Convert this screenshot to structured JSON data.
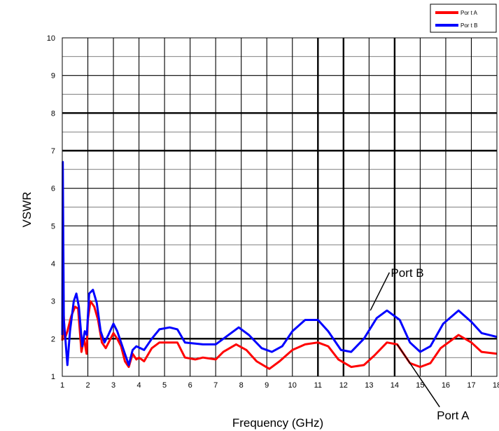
{
  "chart_data": {
    "type": "line",
    "xlabel": "Frequency (GHz)",
    "ylabel": "VSWR",
    "xlim": [
      1,
      18
    ],
    "ylim": [
      1,
      10
    ],
    "x_ticks": [
      "1",
      "2",
      "3",
      "4",
      "5",
      "6",
      "7",
      "8",
      "9",
      "10",
      "11",
      "12",
      "13",
      "14",
      "15",
      "16",
      "17",
      "18"
    ],
    "y_ticks": [
      "1",
      "2",
      "3",
      "4",
      "5",
      "6",
      "7",
      "8",
      "9",
      "10"
    ],
    "grid": true,
    "legend_position": "top-right",
    "legend": [
      "Por t A",
      "Por t B"
    ],
    "series": [
      {
        "name": "Por t A",
        "color": "#ff0000",
        "points": [
          [
            1.0,
            1.95
          ],
          [
            1.05,
            2.7
          ],
          [
            1.1,
            2.0
          ],
          [
            1.2,
            2.2
          ],
          [
            1.35,
            2.6
          ],
          [
            1.5,
            2.85
          ],
          [
            1.62,
            2.8
          ],
          [
            1.75,
            1.65
          ],
          [
            1.85,
            2.0
          ],
          [
            1.95,
            1.6
          ],
          [
            2.0,
            2.5
          ],
          [
            2.1,
            3.0
          ],
          [
            2.25,
            2.85
          ],
          [
            2.4,
            2.5
          ],
          [
            2.55,
            1.9
          ],
          [
            2.7,
            1.75
          ],
          [
            2.85,
            1.95
          ],
          [
            3.0,
            2.15
          ],
          [
            3.15,
            2.0
          ],
          [
            3.3,
            1.8
          ],
          [
            3.45,
            1.4
          ],
          [
            3.6,
            1.25
          ],
          [
            3.75,
            1.6
          ],
          [
            3.9,
            1.45
          ],
          [
            4.0,
            1.5
          ],
          [
            4.2,
            1.4
          ],
          [
            4.5,
            1.75
          ],
          [
            4.8,
            1.9
          ],
          [
            5.2,
            1.9
          ],
          [
            5.5,
            1.9
          ],
          [
            5.8,
            1.5
          ],
          [
            6.2,
            1.45
          ],
          [
            6.5,
            1.5
          ],
          [
            7.0,
            1.45
          ],
          [
            7.3,
            1.65
          ],
          [
            7.8,
            1.85
          ],
          [
            8.2,
            1.7
          ],
          [
            8.6,
            1.4
          ],
          [
            9.1,
            1.2
          ],
          [
            9.5,
            1.4
          ],
          [
            10.0,
            1.7
          ],
          [
            10.5,
            1.85
          ],
          [
            11.0,
            1.9
          ],
          [
            11.4,
            1.8
          ],
          [
            11.8,
            1.45
          ],
          [
            12.3,
            1.25
          ],
          [
            12.8,
            1.3
          ],
          [
            13.2,
            1.55
          ],
          [
            13.7,
            1.9
          ],
          [
            14.1,
            1.85
          ],
          [
            14.6,
            1.35
          ],
          [
            15.0,
            1.25
          ],
          [
            15.4,
            1.35
          ],
          [
            15.8,
            1.75
          ],
          [
            16.5,
            2.1
          ],
          [
            17.0,
            1.9
          ],
          [
            17.4,
            1.65
          ],
          [
            18.0,
            1.6
          ]
        ]
      },
      {
        "name": "Por t B",
        "color": "#0000ff",
        "points": [
          [
            1.0,
            2.1
          ],
          [
            1.02,
            6.7
          ],
          [
            1.06,
            2.5
          ],
          [
            1.12,
            2.0
          ],
          [
            1.2,
            1.3
          ],
          [
            1.3,
            2.2
          ],
          [
            1.45,
            3.0
          ],
          [
            1.55,
            3.2
          ],
          [
            1.65,
            2.85
          ],
          [
            1.78,
            1.8
          ],
          [
            1.88,
            2.2
          ],
          [
            1.96,
            2.1
          ],
          [
            2.05,
            3.2
          ],
          [
            2.2,
            3.3
          ],
          [
            2.35,
            2.95
          ],
          [
            2.5,
            2.2
          ],
          [
            2.65,
            1.9
          ],
          [
            2.8,
            2.1
          ],
          [
            3.0,
            2.4
          ],
          [
            3.15,
            2.2
          ],
          [
            3.3,
            1.9
          ],
          [
            3.45,
            1.6
          ],
          [
            3.6,
            1.3
          ],
          [
            3.75,
            1.7
          ],
          [
            3.9,
            1.8
          ],
          [
            4.2,
            1.7
          ],
          [
            4.5,
            2.0
          ],
          [
            4.8,
            2.25
          ],
          [
            5.2,
            2.3
          ],
          [
            5.5,
            2.25
          ],
          [
            5.8,
            1.9
          ],
          [
            6.5,
            1.85
          ],
          [
            7.0,
            1.85
          ],
          [
            7.4,
            2.05
          ],
          [
            7.9,
            2.3
          ],
          [
            8.3,
            2.1
          ],
          [
            8.8,
            1.75
          ],
          [
            9.2,
            1.65
          ],
          [
            9.6,
            1.8
          ],
          [
            10.0,
            2.2
          ],
          [
            10.5,
            2.5
          ],
          [
            11.0,
            2.5
          ],
          [
            11.4,
            2.2
          ],
          [
            11.9,
            1.7
          ],
          [
            12.3,
            1.65
          ],
          [
            12.8,
            2.0
          ],
          [
            13.3,
            2.55
          ],
          [
            13.7,
            2.75
          ],
          [
            14.2,
            2.5
          ],
          [
            14.6,
            1.9
          ],
          [
            15.0,
            1.65
          ],
          [
            15.4,
            1.8
          ],
          [
            15.9,
            2.4
          ],
          [
            16.5,
            2.75
          ],
          [
            17.0,
            2.45
          ],
          [
            17.4,
            2.15
          ],
          [
            18.0,
            2.05
          ]
        ]
      }
    ],
    "annotations": [
      {
        "text": "Port B",
        "x": 13.85,
        "y": 3.65,
        "arrow_to": [
          13.05,
          2.75
        ]
      },
      {
        "text": "Port A",
        "x": 15.65,
        "y": -0.15,
        "arrow_to": [
          14.1,
          1.85
        ]
      }
    ]
  }
}
